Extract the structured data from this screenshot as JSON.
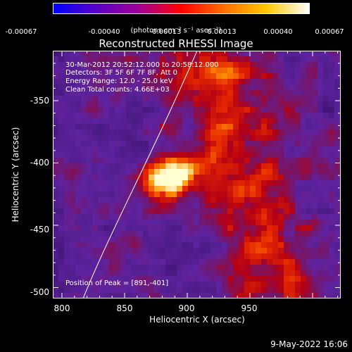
{
  "colorbar": {
    "tick_labels": [
      "-0.00067",
      "-0.00040",
      "-0.00013",
      "0.00013",
      "0.00040",
      "0.00067"
    ],
    "units": "(photons cm⁻² s⁻¹ asec⁻²)",
    "colors": [
      "#0000ff",
      "#5a00c8",
      "#a00096",
      "#ff0000",
      "#ff6e00",
      "#ffc800",
      "#ffffff"
    ]
  },
  "title": "Reconstructed RHESSI Image",
  "annotations": {
    "time_range": "30-Mar-2012 20:52:12.000 to 20:58:12.000",
    "detectors": "Detectors: 3F 5F 6F 7F 8F, Att 0",
    "energy": "Energy Range: 12.0 - 25.0 keV",
    "clean": "Clean     Total counts: 4.66E+03",
    "peak": "Position of Peak = [891,-401]"
  },
  "axes": {
    "xlabel": "Heliocentric X (arcsec)",
    "ylabel": "Heliocentric Y (arcsec)",
    "xticks": [
      "800",
      "850",
      "900",
      "950"
    ],
    "yticks": [
      "-350",
      "-400",
      "-450",
      "-500"
    ]
  },
  "timestamp": "9-May-2022 16:06"
}
